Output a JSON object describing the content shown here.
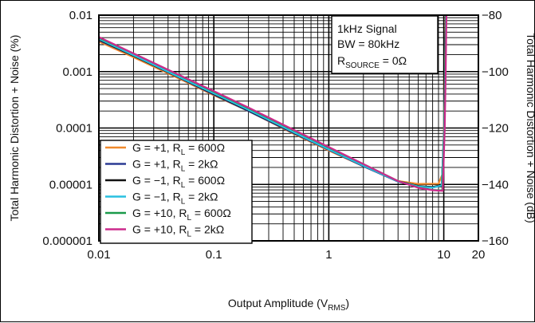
{
  "chart_data": {
    "type": "line",
    "xlabel": "Output Amplitude (V",
    "xlabel_sub": "RMS",
    "xlabel_end": ")",
    "ylabel": "Total Harmonic Distortion + Noise (%)",
    "ylabel_right": "Total Harmonic Distortion + Noise (dB)",
    "x_scale": "log",
    "y_scale": "log",
    "xlim": [
      0.01,
      20
    ],
    "ylim": [
      1e-06,
      0.01
    ],
    "y2lim": [
      -160,
      -80
    ],
    "grid": true,
    "x_ticks": [
      "0.01",
      "0.1",
      "1",
      "10",
      "20"
    ],
    "y_ticks": [
      "0.01",
      "0.001",
      "0.0001",
      "0.00001",
      "0.000001"
    ],
    "y2_ticks": [
      "−80",
      "−100",
      "−120",
      "−140",
      "−160"
    ],
    "annotation": {
      "line1": "1kHz Signal",
      "line2": "BW = 80kHz",
      "line3_prefix": "R",
      "line3_sub": "SOURCE",
      "line3_suffix": " = 0Ω"
    },
    "legend_position": "bottom-left",
    "series": [
      {
        "legend_prefix": "G = +1, R",
        "legend_sub": "L",
        "legend_suffix": " = 600Ω",
        "color": "#f0892c",
        "points": [
          [
            0.01,
            0.0034
          ],
          [
            0.02,
            0.0018
          ],
          [
            0.05,
            0.00075
          ],
          [
            0.1,
            0.00038
          ],
          [
            0.2,
            0.0002
          ],
          [
            0.5,
            7.8e-05
          ],
          [
            1,
            4e-05
          ],
          [
            2,
            2.1e-05
          ],
          [
            4,
            1.15e-05
          ],
          [
            6,
            1.02e-05
          ],
          [
            9,
            1.03e-05
          ],
          [
            9.7,
            1.5e-05
          ],
          [
            10.05,
            0.0001
          ],
          [
            10.25,
            0.001
          ],
          [
            10.4,
            0.01
          ]
        ]
      },
      {
        "legend_prefix": "G = +1, R",
        "legend_sub": "L",
        "legend_suffix": " = 2kΩ",
        "color": "#2c3b94",
        "points": [
          [
            0.01,
            0.0036
          ],
          [
            0.02,
            0.0019
          ],
          [
            0.05,
            0.00078
          ],
          [
            0.1,
            0.00039
          ],
          [
            0.2,
            0.0002
          ],
          [
            0.5,
            8e-05
          ],
          [
            1,
            4.1e-05
          ],
          [
            2,
            2.1e-05
          ],
          [
            4,
            1.12e-05
          ],
          [
            6,
            9.2e-06
          ],
          [
            8,
            8.8e-06
          ],
          [
            9.6,
            9.5e-06
          ],
          [
            10.1,
            0.0001
          ],
          [
            10.3,
            0.001
          ],
          [
            10.45,
            0.01
          ]
        ]
      },
      {
        "legend_prefix": "G = −1, R",
        "legend_sub": "L",
        "legend_suffix": " = 600Ω",
        "color": "#111111",
        "points": [
          [
            0.01,
            0.0037
          ],
          [
            0.02,
            0.0019
          ],
          [
            0.05,
            0.00079
          ],
          [
            0.1,
            0.0004
          ],
          [
            0.2,
            0.000205
          ],
          [
            0.5,
            8.2e-05
          ],
          [
            1,
            4.2e-05
          ],
          [
            2,
            2.15e-05
          ],
          [
            4,
            1.14e-05
          ],
          [
            6,
            9.4e-06
          ],
          [
            8,
            9e-06
          ],
          [
            9.6,
            9.8e-06
          ],
          [
            10.1,
            0.0001
          ],
          [
            10.3,
            0.001
          ],
          [
            10.45,
            0.01
          ]
        ]
      },
      {
        "legend_prefix": "G = −1, R",
        "legend_sub": "L",
        "legend_suffix": " = 2kΩ",
        "color": "#29c0e0",
        "points": [
          [
            0.01,
            0.0038
          ],
          [
            0.02,
            0.00195
          ],
          [
            0.05,
            0.0008
          ],
          [
            0.1,
            0.00041
          ],
          [
            0.2,
            0.00021
          ],
          [
            0.5,
            8.3e-05
          ],
          [
            1,
            4.2e-05
          ],
          [
            2,
            2.15e-05
          ],
          [
            4,
            1.13e-05
          ],
          [
            6,
            9.2e-06
          ],
          [
            8,
            8.8e-06
          ],
          [
            9.6,
            9.6e-06
          ],
          [
            10.1,
            0.0001
          ],
          [
            10.3,
            0.001
          ],
          [
            10.45,
            0.01
          ]
        ]
      },
      {
        "legend_prefix": "G = +10, R",
        "legend_sub": "L",
        "legend_suffix": " = 600Ω",
        "color": "#1a9a4a",
        "points": [
          [
            0.01,
            0.004
          ],
          [
            0.02,
            0.0021
          ],
          [
            0.05,
            0.00086
          ],
          [
            0.1,
            0.00044
          ],
          [
            0.2,
            0.000225
          ],
          [
            0.5,
            9e-05
          ],
          [
            1,
            4.5e-05
          ],
          [
            2,
            2.3e-05
          ],
          [
            4,
            1.15e-05
          ],
          [
            6,
            8.8e-06
          ],
          [
            8,
            8e-06
          ],
          [
            9.7,
            7.8e-06
          ],
          [
            10.15,
            0.0001
          ],
          [
            10.35,
            0.001
          ],
          [
            10.5,
            0.01
          ]
        ]
      },
      {
        "legend_prefix": "G = +10, R",
        "legend_sub": "L",
        "legend_suffix": " = 2kΩ",
        "color": "#cc2a8c",
        "points": [
          [
            0.01,
            0.0041
          ],
          [
            0.02,
            0.0021
          ],
          [
            0.05,
            0.00087
          ],
          [
            0.1,
            0.00045
          ],
          [
            0.2,
            0.00023
          ],
          [
            0.5,
            9.2e-05
          ],
          [
            1,
            4.6e-05
          ],
          [
            2,
            2.3e-05
          ],
          [
            4,
            1.15e-05
          ],
          [
            6,
            8.7e-06
          ],
          [
            8,
            7.9e-06
          ],
          [
            9.8,
            7.7e-06
          ],
          [
            10.2,
            0.0001
          ],
          [
            10.4,
            0.001
          ],
          [
            10.55,
            0.01
          ]
        ]
      }
    ]
  }
}
